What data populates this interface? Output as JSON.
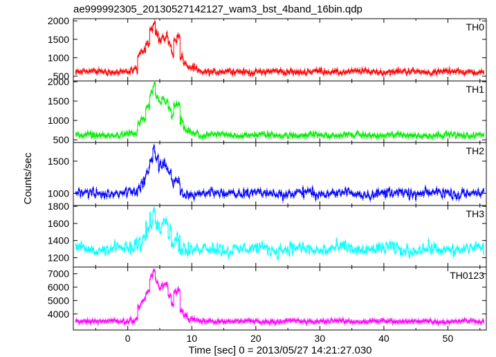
{
  "chart_data": {
    "type": "line",
    "title": "ae999992305_20130527142127_wam3_bst_4band_16bin.qdp",
    "xlabel": "Time [sec] 0 = 2013/05/27 14:21:27.030",
    "ylabel": "Counts/sec",
    "xlim": [
      -8.5,
      56
    ],
    "x_ticks": [
      0,
      10,
      20,
      30,
      40,
      50
    ],
    "grid": false,
    "panels": [
      {
        "name": "TH0",
        "color": "#ff0000",
        "ylim": [
          370,
          2060
        ],
        "y_ticks": [
          500,
          1000,
          1500,
          2000
        ],
        "baseline": 620,
        "noise": 55,
        "burst": [
          [
            0.2,
            0.5,
            680
          ],
          [
            0.5,
            1.5,
            650
          ],
          [
            1.5,
            2.0,
            1000
          ],
          [
            2.0,
            2.8,
            1150
          ],
          [
            2.8,
            3.4,
            1400
          ],
          [
            3.4,
            3.9,
            1800
          ],
          [
            3.9,
            4.3,
            2000
          ],
          [
            4.3,
            4.8,
            1700
          ],
          [
            4.8,
            5.3,
            1500
          ],
          [
            5.3,
            5.8,
            1550
          ],
          [
            5.8,
            6.3,
            1650
          ],
          [
            6.3,
            6.8,
            1350
          ],
          [
            6.8,
            7.2,
            1100
          ],
          [
            7.2,
            7.7,
            1500
          ],
          [
            7.7,
            8.2,
            1550
          ],
          [
            8.2,
            8.7,
            1000
          ],
          [
            8.7,
            9.3,
            800
          ],
          [
            9.3,
            10.0,
            730
          ],
          [
            10.0,
            11.0,
            680
          ]
        ]
      },
      {
        "name": "TH1",
        "color": "#00ee00",
        "ylim": [
          430,
          2020
        ],
        "y_ticks": [
          500,
          1000,
          1500,
          2000
        ],
        "baseline": 620,
        "noise": 50,
        "burst": [
          [
            0.2,
            0.5,
            650
          ],
          [
            0.5,
            1.5,
            640
          ],
          [
            1.5,
            2.0,
            900
          ],
          [
            2.0,
            2.8,
            1050
          ],
          [
            2.8,
            3.4,
            1350
          ],
          [
            3.4,
            3.9,
            1700
          ],
          [
            3.9,
            4.3,
            1900
          ],
          [
            4.3,
            4.8,
            1600
          ],
          [
            4.8,
            5.3,
            1450
          ],
          [
            5.3,
            5.8,
            1550
          ],
          [
            5.8,
            6.3,
            1500
          ],
          [
            6.3,
            6.8,
            1250
          ],
          [
            6.8,
            7.2,
            1050
          ],
          [
            7.2,
            7.7,
            1400
          ],
          [
            7.7,
            8.2,
            1350
          ],
          [
            8.2,
            8.7,
            950
          ],
          [
            8.7,
            9.3,
            780
          ],
          [
            9.3,
            10.0,
            700
          ],
          [
            10.0,
            11.0,
            660
          ]
        ]
      },
      {
        "name": "TH2",
        "color": "#0000ff",
        "ylim": [
          810,
          1790
        ],
        "y_ticks": [
          1000,
          1500
        ],
        "baseline": 1000,
        "noise": 55,
        "burst": [
          [
            0.5,
            1.5,
            1050
          ],
          [
            1.5,
            2.0,
            1120
          ],
          [
            2.0,
            2.8,
            1200
          ],
          [
            2.8,
            3.4,
            1380
          ],
          [
            3.4,
            3.9,
            1550
          ],
          [
            3.9,
            4.3,
            1680
          ],
          [
            4.3,
            4.8,
            1520
          ],
          [
            4.8,
            5.3,
            1420
          ],
          [
            5.3,
            5.8,
            1460
          ],
          [
            5.8,
            6.3,
            1400
          ],
          [
            6.3,
            6.8,
            1250
          ],
          [
            6.8,
            7.2,
            1120
          ],
          [
            7.2,
            7.7,
            1200
          ],
          [
            7.7,
            8.2,
            1150
          ],
          [
            8.2,
            8.7,
            1000
          ],
          [
            8.7,
            9.5,
            980
          ]
        ]
      },
      {
        "name": "TH3",
        "color": "#00ffff",
        "ylim": [
          1090,
          1810
        ],
        "y_ticks": [
          1200,
          1400,
          1600,
          1800
        ],
        "baseline": 1300,
        "noise": 55,
        "burst": [
          [
            1.0,
            2.0,
            1380
          ],
          [
            2.0,
            2.8,
            1450
          ],
          [
            2.8,
            3.4,
            1550
          ],
          [
            3.4,
            3.9,
            1650
          ],
          [
            3.9,
            4.3,
            1720
          ],
          [
            4.3,
            4.8,
            1600
          ],
          [
            4.8,
            5.3,
            1560
          ],
          [
            5.3,
            5.8,
            1650
          ],
          [
            5.8,
            6.3,
            1600
          ],
          [
            6.3,
            6.8,
            1480
          ],
          [
            6.8,
            7.2,
            1380
          ],
          [
            7.2,
            7.7,
            1430
          ],
          [
            7.7,
            8.2,
            1400
          ],
          [
            8.2,
            9.0,
            1320
          ]
        ]
      },
      {
        "name": "TH0123",
        "color": "#ff00ff",
        "ylim": [
          2800,
          7500
        ],
        "y_ticks": [
          4000,
          5000,
          6000,
          7000
        ],
        "baseline": 3450,
        "noise": 110,
        "burst": [
          [
            0.2,
            0.5,
            3700
          ],
          [
            0.5,
            1.5,
            3600
          ],
          [
            1.5,
            2.0,
            4650
          ],
          [
            2.0,
            2.8,
            5000
          ],
          [
            2.8,
            3.4,
            5700
          ],
          [
            3.4,
            3.9,
            6700
          ],
          [
            3.9,
            4.3,
            7200
          ],
          [
            4.3,
            4.8,
            6400
          ],
          [
            4.8,
            5.3,
            5800
          ],
          [
            5.3,
            5.8,
            6100
          ],
          [
            5.8,
            6.3,
            6200
          ],
          [
            6.3,
            6.8,
            5400
          ],
          [
            6.8,
            7.2,
            4700
          ],
          [
            7.2,
            7.7,
            5700
          ],
          [
            7.7,
            8.2,
            5900
          ],
          [
            8.2,
            8.7,
            4300
          ],
          [
            8.7,
            9.3,
            3900
          ],
          [
            9.3,
            10.0,
            3650
          ],
          [
            10.0,
            11.0,
            3550
          ]
        ]
      }
    ]
  }
}
